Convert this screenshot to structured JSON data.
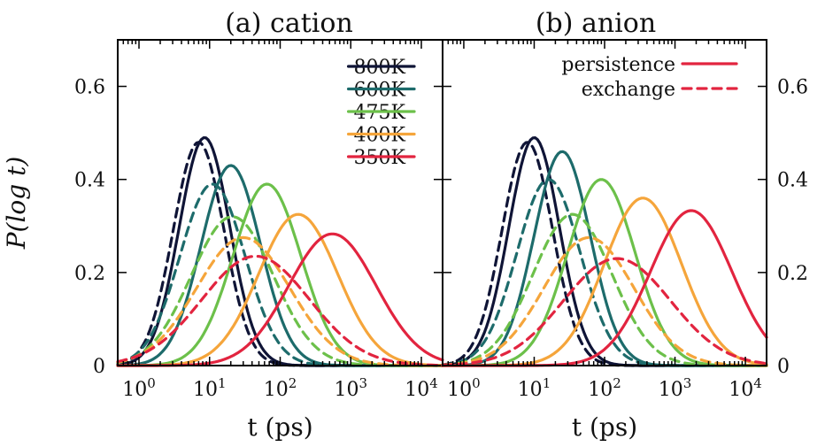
{
  "colors": {
    "800K": "#0f1436",
    "600K": "#1d6b6b",
    "475K": "#6cc04a",
    "400K": "#f5a53b",
    "350K": "#e2243f"
  },
  "chart_data": [
    {
      "type": "line",
      "title": "(a) cation",
      "xlabel": "t (ps)",
      "ylabel": "P(log t)",
      "x_scale": "log",
      "xlim": [
        0.5,
        20000
      ],
      "ylim": [
        0,
        0.7
      ],
      "x_ticks": [
        1,
        10,
        100,
        1000,
        10000
      ],
      "x_tick_labels": [
        "10^0",
        "10^1",
        "10^2",
        "10^3",
        "10^4"
      ],
      "y_ticks": [
        0,
        0.2,
        0.4,
        0.6
      ],
      "y_tick_labels": [
        "0",
        "0.2",
        "0.4",
        "0.6"
      ],
      "grid": false,
      "legend": {
        "position": "top-right",
        "entries": [
          {
            "label": "800K",
            "color": "#0f1436"
          },
          {
            "label": "600K",
            "color": "#1d6b6b"
          },
          {
            "label": "475K",
            "color": "#6cc04a"
          },
          {
            "label": "400K",
            "color": "#f5a53b"
          },
          {
            "label": "350K",
            "color": "#e2243f"
          }
        ]
      },
      "series": [
        {
          "temperature": "800K",
          "kind": "persistence",
          "color": "#0f1436",
          "peak_x": 8.5,
          "peak_y": 0.49,
          "log_width": 0.36
        },
        {
          "temperature": "800K",
          "kind": "exchange",
          "color": "#0f1436",
          "peak_x": 7.0,
          "peak_y": 0.48,
          "log_width": 0.36
        },
        {
          "temperature": "600K",
          "kind": "persistence",
          "color": "#1d6b6b",
          "peak_x": 20,
          "peak_y": 0.43,
          "log_width": 0.42
        },
        {
          "temperature": "600K",
          "kind": "exchange",
          "color": "#1d6b6b",
          "peak_x": 11,
          "peak_y": 0.39,
          "log_width": 0.46
        },
        {
          "temperature": "475K",
          "kind": "persistence",
          "color": "#6cc04a",
          "peak_x": 65,
          "peak_y": 0.39,
          "log_width": 0.48
        },
        {
          "temperature": "475K",
          "kind": "exchange",
          "color": "#6cc04a",
          "peak_x": 21,
          "peak_y": 0.32,
          "log_width": 0.58
        },
        {
          "temperature": "400K",
          "kind": "persistence",
          "color": "#f5a53b",
          "peak_x": 180,
          "peak_y": 0.325,
          "log_width": 0.56
        },
        {
          "temperature": "400K",
          "kind": "exchange",
          "color": "#f5a53b",
          "peak_x": 30,
          "peak_y": 0.275,
          "log_width": 0.66
        },
        {
          "temperature": "350K",
          "kind": "persistence",
          "color": "#e2243f",
          "peak_x": 550,
          "peak_y": 0.283,
          "log_width": 0.62
        },
        {
          "temperature": "350K",
          "kind": "exchange",
          "color": "#e2243f",
          "peak_x": 45,
          "peak_y": 0.235,
          "log_width": 0.76
        }
      ]
    },
    {
      "type": "line",
      "title": "(b) anion",
      "xlabel": "t (ps)",
      "ylabel": "",
      "x_scale": "log",
      "xlim": [
        0.5,
        20000
      ],
      "ylim": [
        0,
        0.7
      ],
      "x_ticks": [
        1,
        10,
        100,
        1000,
        10000
      ],
      "x_tick_labels": [
        "10^0",
        "10^1",
        "10^2",
        "10^3",
        "10^4"
      ],
      "y_ticks": [
        0,
        0.2,
        0.4,
        0.6
      ],
      "y_tick_labels": [
        "0",
        "0.2",
        "0.4",
        "0.6"
      ],
      "grid": false,
      "legend": {
        "position": "top-right",
        "entries": [
          {
            "label": "persistence",
            "color": "#e2243f",
            "style": "solid"
          },
          {
            "label": "exchange",
            "color": "#e2243f",
            "style": "dashed"
          }
        ]
      },
      "series": [
        {
          "temperature": "800K",
          "kind": "persistence",
          "color": "#0f1436",
          "peak_x": 10,
          "peak_y": 0.49,
          "log_width": 0.36
        },
        {
          "temperature": "800K",
          "kind": "exchange",
          "color": "#0f1436",
          "peak_x": 8,
          "peak_y": 0.48,
          "log_width": 0.36
        },
        {
          "temperature": "600K",
          "kind": "persistence",
          "color": "#1d6b6b",
          "peak_x": 25,
          "peak_y": 0.46,
          "log_width": 0.4
        },
        {
          "temperature": "600K",
          "kind": "exchange",
          "color": "#1d6b6b",
          "peak_x": 16,
          "peak_y": 0.4,
          "log_width": 0.45
        },
        {
          "temperature": "475K",
          "kind": "persistence",
          "color": "#6cc04a",
          "peak_x": 90,
          "peak_y": 0.4,
          "log_width": 0.48
        },
        {
          "temperature": "475K",
          "kind": "exchange",
          "color": "#6cc04a",
          "peak_x": 35,
          "peak_y": 0.325,
          "log_width": 0.56
        },
        {
          "temperature": "400K",
          "kind": "persistence",
          "color": "#f5a53b",
          "peak_x": 350,
          "peak_y": 0.36,
          "log_width": 0.55
        },
        {
          "temperature": "400K",
          "kind": "exchange",
          "color": "#f5a53b",
          "peak_x": 60,
          "peak_y": 0.275,
          "log_width": 0.64
        },
        {
          "temperature": "350K",
          "kind": "persistence",
          "color": "#e2243f",
          "peak_x": 1700,
          "peak_y": 0.333,
          "log_width": 0.58
        },
        {
          "temperature": "350K",
          "kind": "exchange",
          "color": "#e2243f",
          "peak_x": 150,
          "peak_y": 0.23,
          "log_width": 0.76
        }
      ]
    }
  ]
}
